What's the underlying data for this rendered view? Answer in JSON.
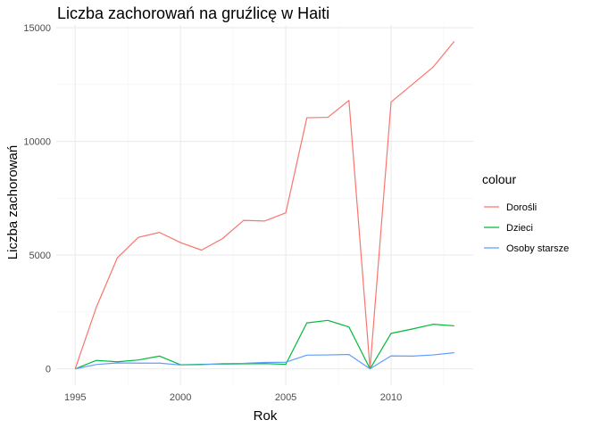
{
  "chart_data": {
    "type": "line",
    "title": "Liczba zachorowań na gruźlicę w Haiti",
    "xlabel": "Rok",
    "ylabel": "Liczba zachorowań",
    "x": [
      1995,
      1996,
      1997,
      1998,
      1999,
      2000,
      2001,
      2002,
      2003,
      2004,
      2005,
      2006,
      2007,
      2008,
      2009,
      2010,
      2011,
      2012,
      2013
    ],
    "xlim": [
      1995,
      2013
    ],
    "ylim": [
      0,
      14400
    ],
    "xticks": [
      1995,
      2000,
      2005,
      2010
    ],
    "xtick_labels": [
      "1995",
      "2000",
      "2005",
      "2010"
    ],
    "yticks": [
      0,
      5000,
      10000,
      15000
    ],
    "ytick_labels": [
      "0",
      "5000",
      "10000",
      "15000"
    ],
    "grid": true,
    "legend": {
      "title": "colour",
      "position": "right"
    },
    "series": [
      {
        "name": "Dorośli",
        "color": "#F8766D",
        "values": [
          0,
          2700,
          4880,
          5780,
          6000,
          5550,
          5220,
          5730,
          6530,
          6500,
          6860,
          11040,
          11060,
          11800,
          0,
          11730,
          12500,
          13270,
          14400
        ]
      },
      {
        "name": "Dzieci",
        "color": "#00BA38",
        "values": [
          0,
          370,
          310,
          390,
          560,
          180,
          200,
          210,
          220,
          230,
          200,
          2020,
          2130,
          1840,
          0,
          1560,
          1750,
          1960,
          1890
        ]
      },
      {
        "name": "Osoby starsze",
        "color": "#619CFF",
        "values": [
          0,
          190,
          260,
          250,
          250,
          170,
          180,
          230,
          240,
          280,
          290,
          600,
          610,
          630,
          0,
          570,
          560,
          610,
          710
        ]
      }
    ]
  }
}
